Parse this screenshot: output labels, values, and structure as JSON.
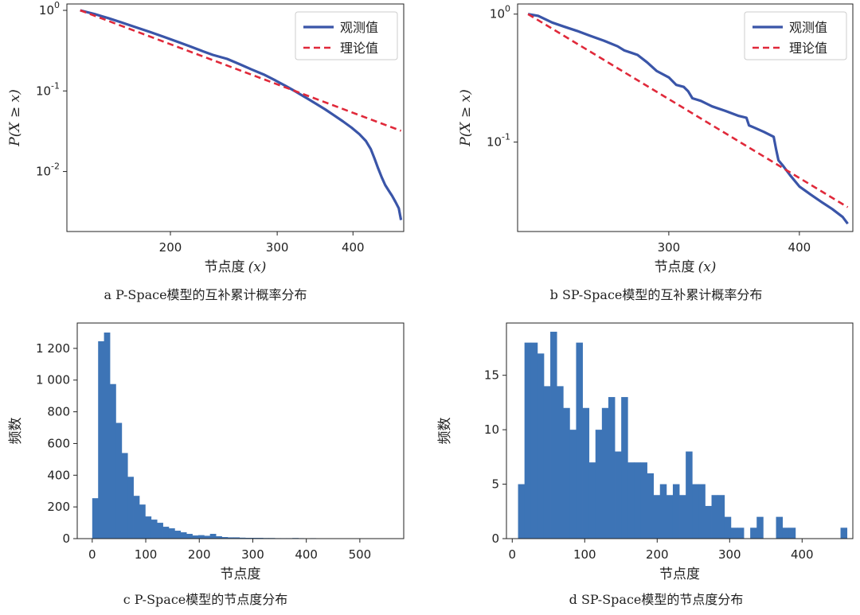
{
  "colors": {
    "observed": "#3a55a8",
    "theory": "#e0293a",
    "bar": "#3d74b6",
    "axis": "#222222"
  },
  "chart_data": [
    {
      "id": "a",
      "type": "line",
      "caption": "a P-Space模型的互补累计概率分布",
      "xlabel": "节点度",
      "xlabel_var": "(x)",
      "ylabel": "P(X ≥ x)",
      "xscale": "log",
      "yscale": "log",
      "xlim": [
        135,
        485
      ],
      "ylim": [
        0.0018,
        1.2
      ],
      "xticks": [
        200,
        300,
        400
      ],
      "yticks": [
        {
          "value": 1,
          "label": "10",
          "exp": "0"
        },
        {
          "value": 0.1,
          "label": "10",
          "exp": "-1"
        },
        {
          "value": 0.01,
          "label": "10",
          "exp": "-2"
        }
      ],
      "legend": {
        "position": "top-right",
        "entries": [
          "观测值",
          "理论值"
        ]
      },
      "series": [
        {
          "name": "观测值",
          "style": "solid",
          "x": [
            142,
            150,
            158,
            166,
            175,
            185,
            195,
            205,
            215,
            225,
            235,
            248,
            260,
            272,
            285,
            298,
            310,
            322,
            335,
            348,
            360,
            372,
            385,
            398,
            410,
            420,
            428,
            434,
            440,
            446,
            452,
            458,
            464,
            470,
            476,
            480
          ],
          "y": [
            1.0,
            0.9,
            0.8,
            0.71,
            0.62,
            0.54,
            0.47,
            0.41,
            0.36,
            0.315,
            0.28,
            0.25,
            0.215,
            0.185,
            0.16,
            0.135,
            0.115,
            0.098,
            0.082,
            0.069,
            0.059,
            0.05,
            0.042,
            0.035,
            0.029,
            0.024,
            0.019,
            0.0145,
            0.011,
            0.0085,
            0.0068,
            0.0058,
            0.005,
            0.0042,
            0.0035,
            0.0025
          ]
        },
        {
          "name": "理论值",
          "style": "dashed",
          "x": [
            142,
            480
          ],
          "y": [
            1.0,
            0.032
          ]
        }
      ]
    },
    {
      "id": "b",
      "type": "line",
      "caption": "b SP-Space模型的互补累计概率分布",
      "xlabel": "节点度",
      "xlabel_var": "(x)",
      "ylabel": "P(X ≥ x)",
      "xscale": "log",
      "yscale": "log",
      "xlim": [
        215,
        450
      ],
      "ylim": [
        0.02,
        1.2
      ],
      "xticks": [
        300,
        400
      ],
      "yticks": [
        {
          "value": 1,
          "label": "10",
          "exp": "0"
        },
        {
          "value": 0.1,
          "label": "10",
          "exp": "-1"
        }
      ],
      "legend": {
        "position": "top-right",
        "entries": [
          "观测值",
          "理论值"
        ]
      },
      "series": [
        {
          "name": "观测值",
          "style": "solid",
          "x": [
            220,
            225,
            228,
            232,
            238,
            245,
            252,
            260,
            268,
            272,
            276,
            280,
            286,
            292,
            300,
            305,
            310,
            313,
            316,
            322,
            330,
            340,
            350,
            356,
            358,
            362,
            370,
            378,
            380,
            382,
            386,
            392,
            400,
            410,
            420,
            430,
            440,
            445
          ],
          "y": [
            1.0,
            0.97,
            0.92,
            0.86,
            0.8,
            0.74,
            0.68,
            0.62,
            0.56,
            0.52,
            0.5,
            0.48,
            0.42,
            0.36,
            0.32,
            0.28,
            0.27,
            0.25,
            0.22,
            0.21,
            0.19,
            0.175,
            0.16,
            0.155,
            0.135,
            0.13,
            0.12,
            0.11,
            0.088,
            0.072,
            0.065,
            0.055,
            0.045,
            0.039,
            0.034,
            0.03,
            0.026,
            0.023
          ]
        },
        {
          "name": "理论值",
          "style": "dashed",
          "x": [
            220,
            445
          ],
          "y": [
            1.0,
            0.031
          ]
        }
      ]
    },
    {
      "id": "c",
      "type": "bar",
      "caption": "c P-Space模型的节点度分布",
      "xlabel": "节点度",
      "ylabel": "频数",
      "xlim": [
        -28,
        582
      ],
      "ylim": [
        0,
        1360
      ],
      "xticks": [
        0,
        100,
        200,
        300,
        400,
        500
      ],
      "yticks": [
        {
          "value": 0,
          "label": "0"
        },
        {
          "value": 200,
          "label": "200"
        },
        {
          "value": 400,
          "label": "400"
        },
        {
          "value": 600,
          "label": "600"
        },
        {
          "value": 800,
          "label": "800"
        },
        {
          "value": 1000,
          "label": "1 000"
        },
        {
          "value": 1200,
          "label": "1 200"
        }
      ],
      "bin_start": 0,
      "bin_width": 11,
      "values": [
        255,
        1245,
        1300,
        975,
        730,
        540,
        390,
        270,
        215,
        140,
        120,
        100,
        75,
        65,
        50,
        40,
        30,
        20,
        22,
        18,
        30,
        15,
        10,
        8,
        8,
        6,
        5,
        5,
        5,
        4,
        4,
        3,
        3,
        3,
        4,
        3,
        2,
        3,
        2,
        2,
        0,
        2,
        2,
        1,
        1,
        1,
        1,
        1,
        1,
        1
      ]
    },
    {
      "id": "d",
      "type": "bar",
      "caption": "d SP-Space模型的节点度分布",
      "xlabel": "节点度",
      "ylabel": "频数",
      "xlim": [
        -8,
        470
      ],
      "ylim": [
        0,
        19.8
      ],
      "xticks": [
        0,
        100,
        200,
        300,
        400
      ],
      "yticks": [
        {
          "value": 0,
          "label": "0"
        },
        {
          "value": 5,
          "label": "5"
        },
        {
          "value": 10,
          "label": "10"
        },
        {
          "value": 15,
          "label": "15"
        }
      ],
      "bin_start": 8,
      "bin_width": 8.9,
      "values": [
        5,
        18,
        18,
        17,
        14,
        19,
        14,
        12,
        10,
        18,
        12,
        7,
        10,
        12,
        13,
        8,
        13,
        7,
        7,
        7,
        6,
        4,
        5,
        4,
        5,
        4,
        8,
        5,
        5,
        3,
        4,
        4,
        2,
        1,
        1,
        0,
        1,
        2,
        0,
        0,
        2,
        1,
        1,
        0,
        0,
        0,
        0,
        0,
        0,
        0,
        1
      ]
    }
  ]
}
